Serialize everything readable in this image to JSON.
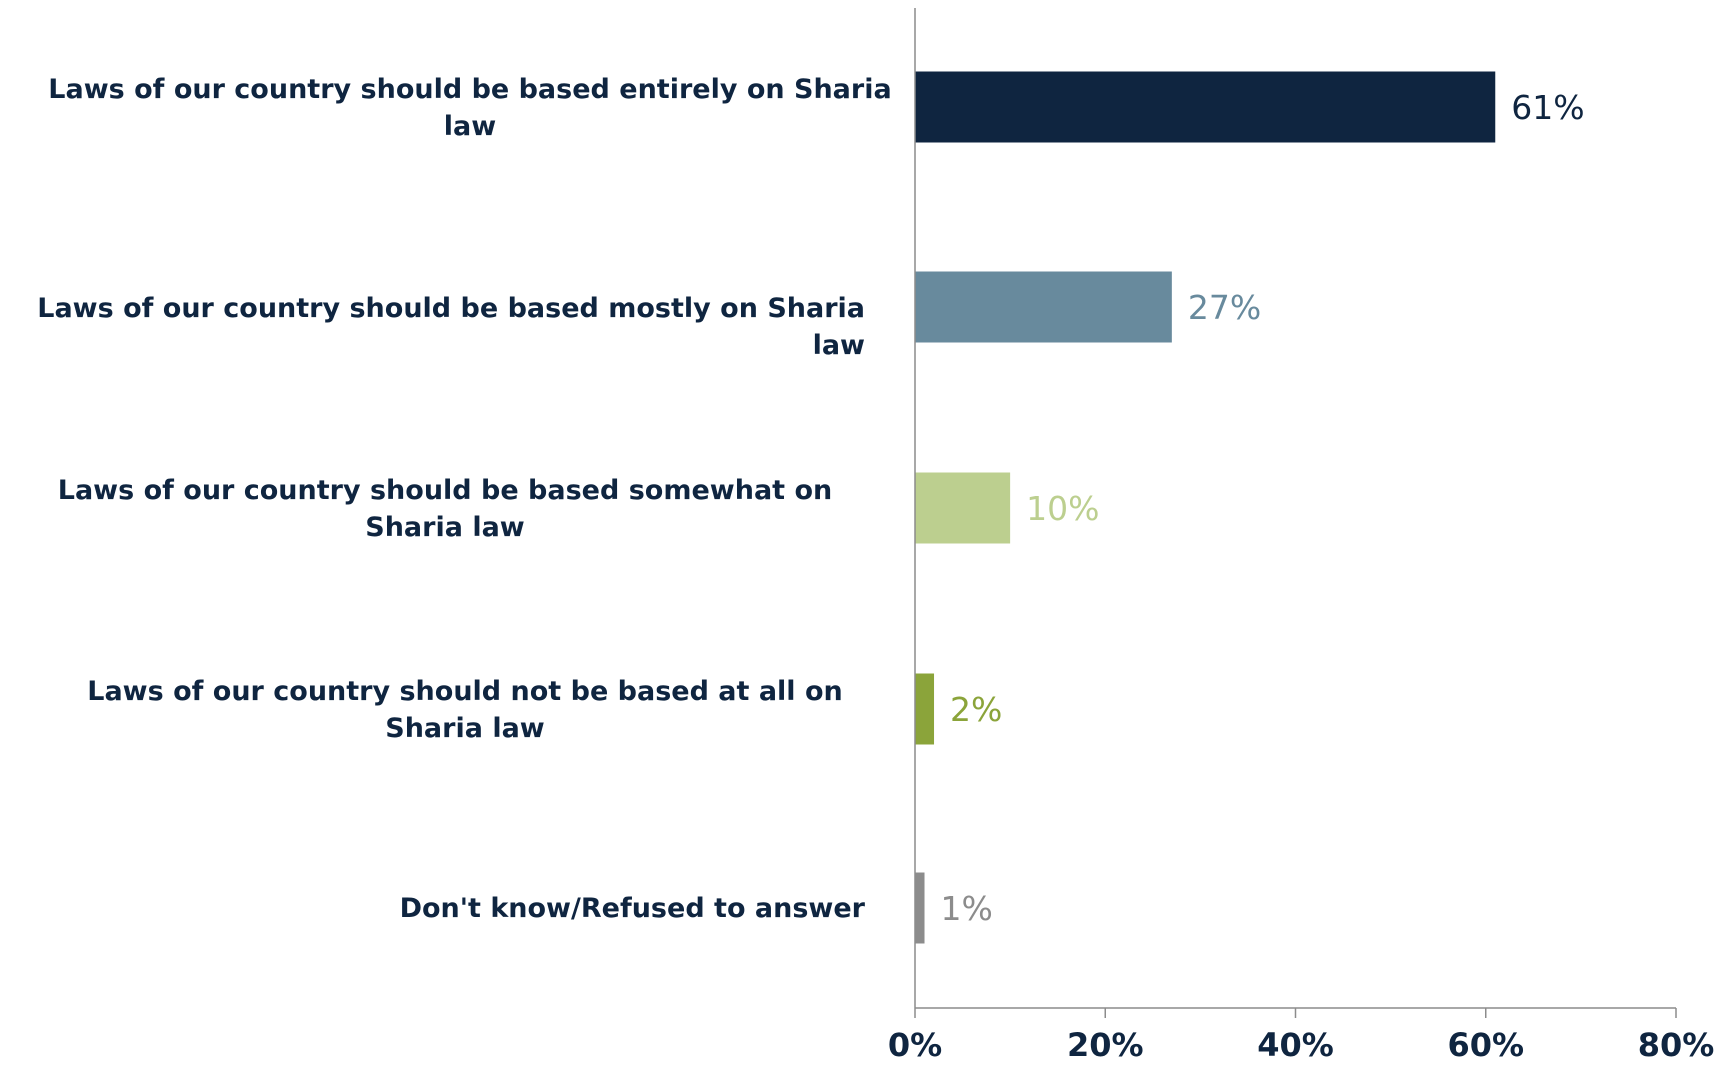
{
  "chart_data": {
    "type": "bar",
    "orientation": "horizontal",
    "categories": [
      "Laws of our country should be based entirely on Sharia law",
      "Laws of our country should be based mostly on Sharia law",
      "Laws of our country should be based somewhat on Sharia law",
      "Laws of our country should not be based at all on Sharia law",
      "Don't know/Refused to answer"
    ],
    "values": [
      61,
      27,
      10,
      2,
      1
    ],
    "value_labels": [
      "61%",
      "27%",
      "10%",
      "2%",
      "1%"
    ],
    "colors": [
      "#0f2540",
      "#688a9d",
      "#bccf8f",
      "#8ba43a",
      "#8c8c8c"
    ],
    "title": "",
    "xlabel": "",
    "ylabel": "",
    "xlim": [
      0,
      80
    ],
    "xticks": [
      0,
      20,
      40,
      60,
      80
    ],
    "xtick_labels": [
      "0%",
      "20%",
      "40%",
      "60%",
      "80%"
    ],
    "grid": false,
    "legend": "none"
  }
}
